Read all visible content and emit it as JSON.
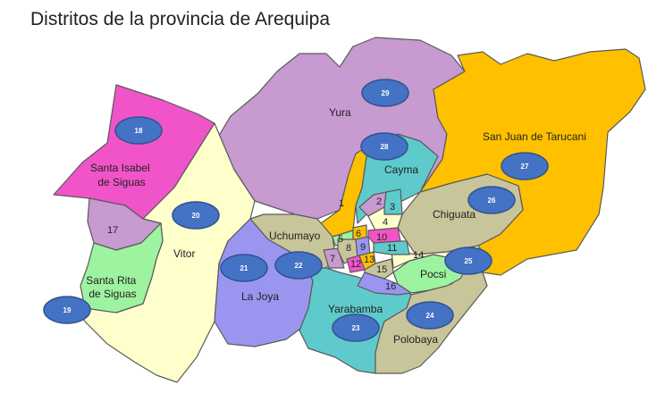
{
  "title": "Distritos de la provincia de Arequipa",
  "colors": {
    "yura": "#c79ad0",
    "tarucani": "#ffc000",
    "cayma": "#5fcacb",
    "santa_isabel": "#f054c8",
    "vitor": "#ffffcc",
    "santa_rita": "#9ef3a0",
    "la_joya": "#9a96f0",
    "tan": "#c9c59a",
    "badge": "#4472c4"
  },
  "districts": {
    "yura": "Yura",
    "tarucani": "San Juan de Tarucani",
    "cayma": "Cayma",
    "chiguata": "Chiguata",
    "santa_isabel": "Santa Isabel\nde Siguas",
    "vitor": "Vitor",
    "santa_rita": "Santa Rita\nde Siguas",
    "uchumayo": "Uchumayo",
    "la_joya": "La Joya",
    "pocsi": "Pocsi",
    "yarabamba": "Yarabamba",
    "polobaya": "Polobaya"
  },
  "numbers": [
    "1",
    "2",
    "3",
    "4",
    "5",
    "6",
    "7",
    "8",
    "9",
    "10",
    "11",
    "12",
    "13",
    "14",
    "15",
    "16",
    "17"
  ],
  "badges": [
    "18",
    "19",
    "20",
    "21",
    "22",
    "23",
    "24",
    "25",
    "26",
    "27",
    "28",
    "29"
  ]
}
